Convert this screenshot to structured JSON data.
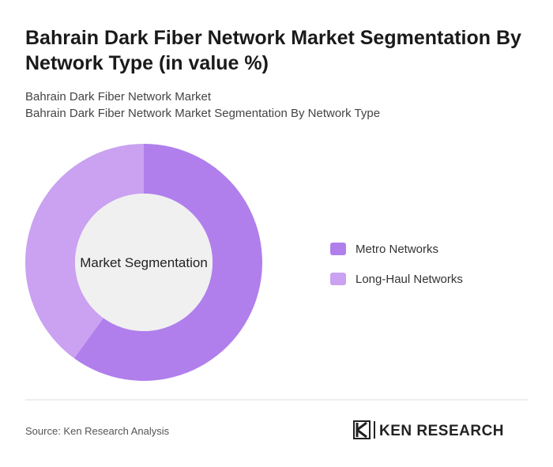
{
  "chart_data": {
    "type": "donut",
    "title": "Bahrain Dark Fiber Network Market Segmentation By Network Type (in value %)",
    "subtitle": [
      "Bahrain Dark Fiber Network Market",
      "Bahrain Dark Fiber Network Market Segmentation By Network Type"
    ],
    "center_label": "Market Segmentation",
    "categories": [
      "Metro Networks",
      "Long-Haul Networks"
    ],
    "values": [
      60,
      40
    ],
    "colors": [
      "#b07fec",
      "#caa2f1"
    ],
    "source": "Source: Ken Research Analysis",
    "logo": "KEN RESEARCH"
  }
}
